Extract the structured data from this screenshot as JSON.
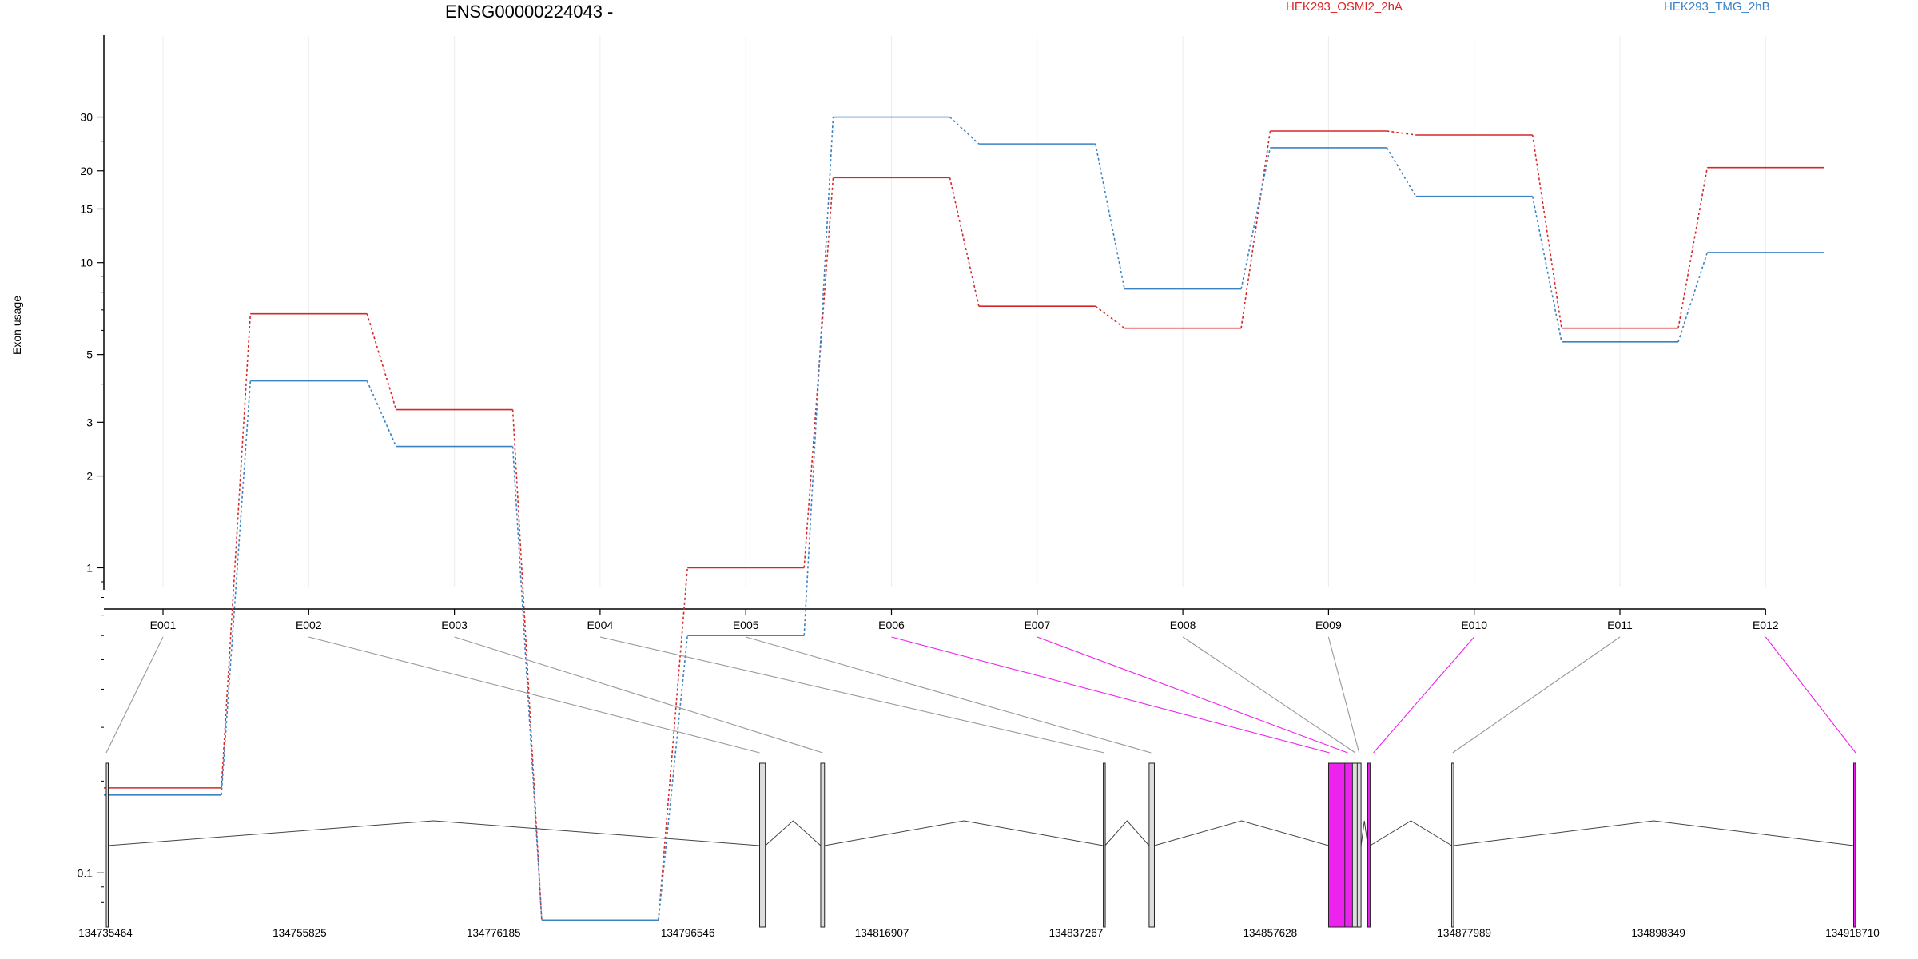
{
  "chart_data": {
    "type": "line",
    "title": "ENSG00000224043 -",
    "ylabel": "Exon usage",
    "y_scale": "log",
    "y_ticks": [
      0.1,
      1,
      2,
      3,
      5,
      10,
      15,
      20,
      30
    ],
    "y_tick_labels": [
      "0.1",
      "1",
      "2",
      "3",
      "5",
      "10",
      "15",
      "20",
      "30"
    ],
    "categories": [
      "E001",
      "E002",
      "E003",
      "E004",
      "E005",
      "E006",
      "E007",
      "E008",
      "E009",
      "E010",
      "E011",
      "E012"
    ],
    "series": [
      {
        "name": "HEK293_OSMI2_2hA",
        "color": "#d62728",
        "values": [
          0.19,
          6.8,
          3.3,
          0.07,
          1.0,
          19.0,
          7.2,
          6.1,
          27.0,
          26.2,
          6.1,
          20.5
        ]
      },
      {
        "name": "HEK293_TMG_2hB",
        "color": "#3b82c4",
        "values": [
          0.18,
          4.1,
          2.5,
          0.07,
          0.6,
          30.0,
          24.5,
          8.2,
          23.8,
          16.5,
          5.5,
          10.8
        ]
      }
    ],
    "grid": "vertical",
    "legend": "top"
  },
  "gene_model": {
    "coordinate_labels": [
      "134735464",
      "134755825",
      "134776185",
      "134796546",
      "134816907",
      "134837267",
      "134857628",
      "134877989",
      "134898349",
      "134918710"
    ],
    "coordinate_range": [
      134735464,
      134918710
    ],
    "highlight_color": "#ee22ee",
    "exon_color": "#dddddd",
    "exons": [
      {
        "id": "E001",
        "start": 134735464,
        "end": 134735600,
        "highlight": false
      },
      {
        "id": "E002",
        "start": 134803900,
        "end": 134804500,
        "highlight": false
      },
      {
        "id": "E003",
        "start": 134810300,
        "end": 134810700,
        "highlight": false
      },
      {
        "id": "E004",
        "start": 134839900,
        "end": 134840080,
        "highlight": false
      },
      {
        "id": "E005",
        "start": 134844700,
        "end": 134845250,
        "highlight": false
      },
      {
        "id": "E006",
        "start": 134863500,
        "end": 134865300,
        "highlight": true
      },
      {
        "id": "E007",
        "start": 134865200,
        "end": 134866050,
        "highlight": true
      },
      {
        "id": "E008",
        "start": 134866000,
        "end": 134866550,
        "highlight": false
      },
      {
        "id": "E009",
        "start": 134866500,
        "end": 134866900,
        "highlight": false
      },
      {
        "id": "E010",
        "start": 134867600,
        "end": 134867850,
        "highlight": true
      },
      {
        "id": "E011",
        "start": 134876400,
        "end": 134876600,
        "highlight": false
      },
      {
        "id": "E012",
        "start": 134918500,
        "end": 134918710,
        "highlight": true
      }
    ],
    "introns": [
      [
        "E001",
        "E002"
      ],
      [
        "E002",
        "E003"
      ],
      [
        "E003",
        "E004"
      ],
      [
        "E004",
        "E005"
      ],
      [
        "E005",
        "E006"
      ],
      [
        "E009",
        "E010"
      ],
      [
        "E010",
        "E011"
      ],
      [
        "E011",
        "E012"
      ]
    ],
    "junction_anchors": [
      134735464,
      134803900,
      134810500,
      134840000,
      134844900,
      134863600,
      134865500,
      134866300,
      134866700,
      134868200,
      134876500,
      134918710
    ]
  }
}
